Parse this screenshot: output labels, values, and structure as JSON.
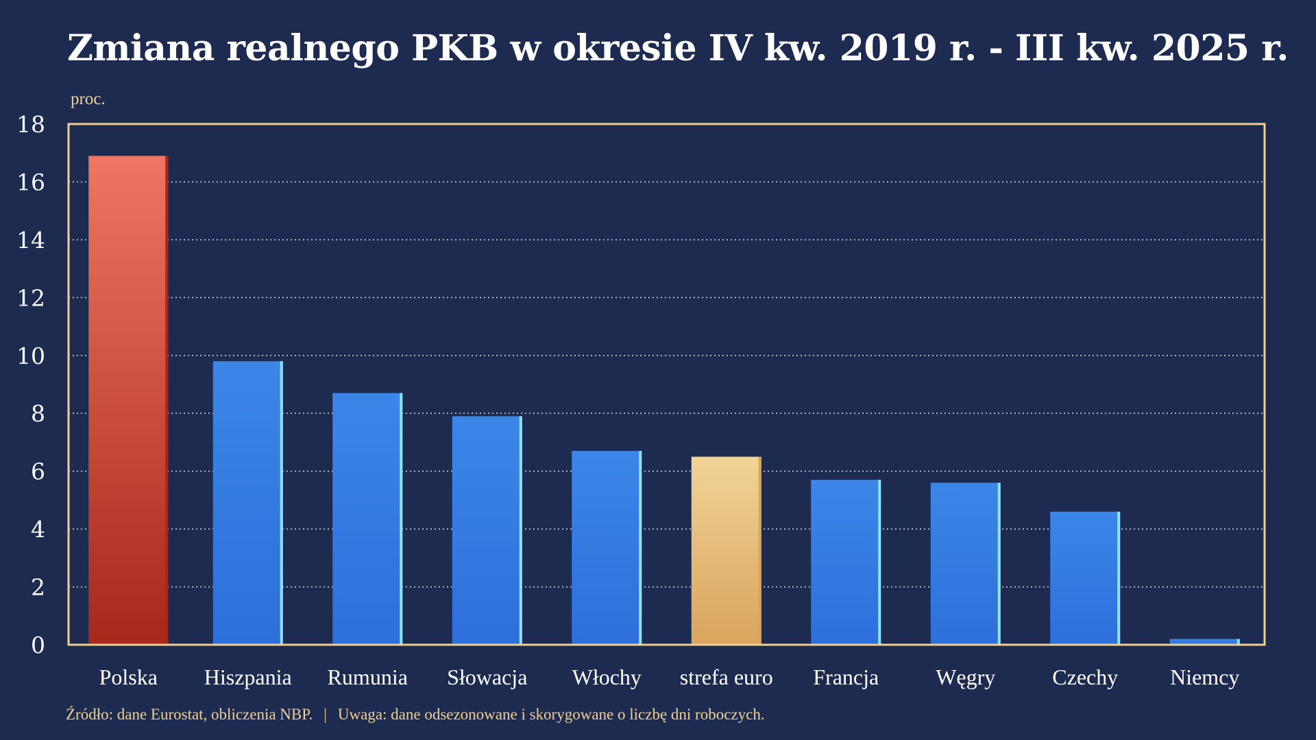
{
  "colors": {
    "background": "#1c2b4f",
    "accent_text": "#f2d08f",
    "frame": "#f2d08f",
    "grid": "#c9d1e0",
    "poland_top": "#ee7662",
    "poland_bottom": "#a8271b",
    "country_top": "#3c86e8",
    "country_bottom": "#2d6fdb",
    "country_edge": "#8fe3ff",
    "euro_top": "#f1d496",
    "euro_bottom": "#d9a45e"
  },
  "chart_data": {
    "type": "bar",
    "title": "Zmiana realnego PKB w okresie IV kw. 2019 r. - III kw. 2025 r.",
    "ylabel": "proc.",
    "xlabel": "",
    "categories": [
      "Polska",
      "Hiszpania",
      "Rumunia",
      "Słowacja",
      "Włochy",
      "strefa euro",
      "Francja",
      "Węgry",
      "Czechy",
      "Niemcy"
    ],
    "values": [
      16.9,
      9.8,
      8.7,
      7.9,
      6.7,
      6.5,
      5.7,
      5.6,
      4.6,
      0.2
    ],
    "highlight": {
      "Polska": "poland",
      "strefa euro": "euro"
    },
    "ylim": [
      0,
      18
    ],
    "yticks": [
      0,
      2,
      4,
      6,
      8,
      10,
      12,
      14,
      16,
      18
    ],
    "grid": true,
    "legend": "none"
  },
  "footer": {
    "source": "Źródło: dane Eurostat, obliczenia NBP.",
    "separator": "|",
    "note": "Uwaga: dane odsezonowane i skorygowane o liczbę dni roboczych."
  }
}
